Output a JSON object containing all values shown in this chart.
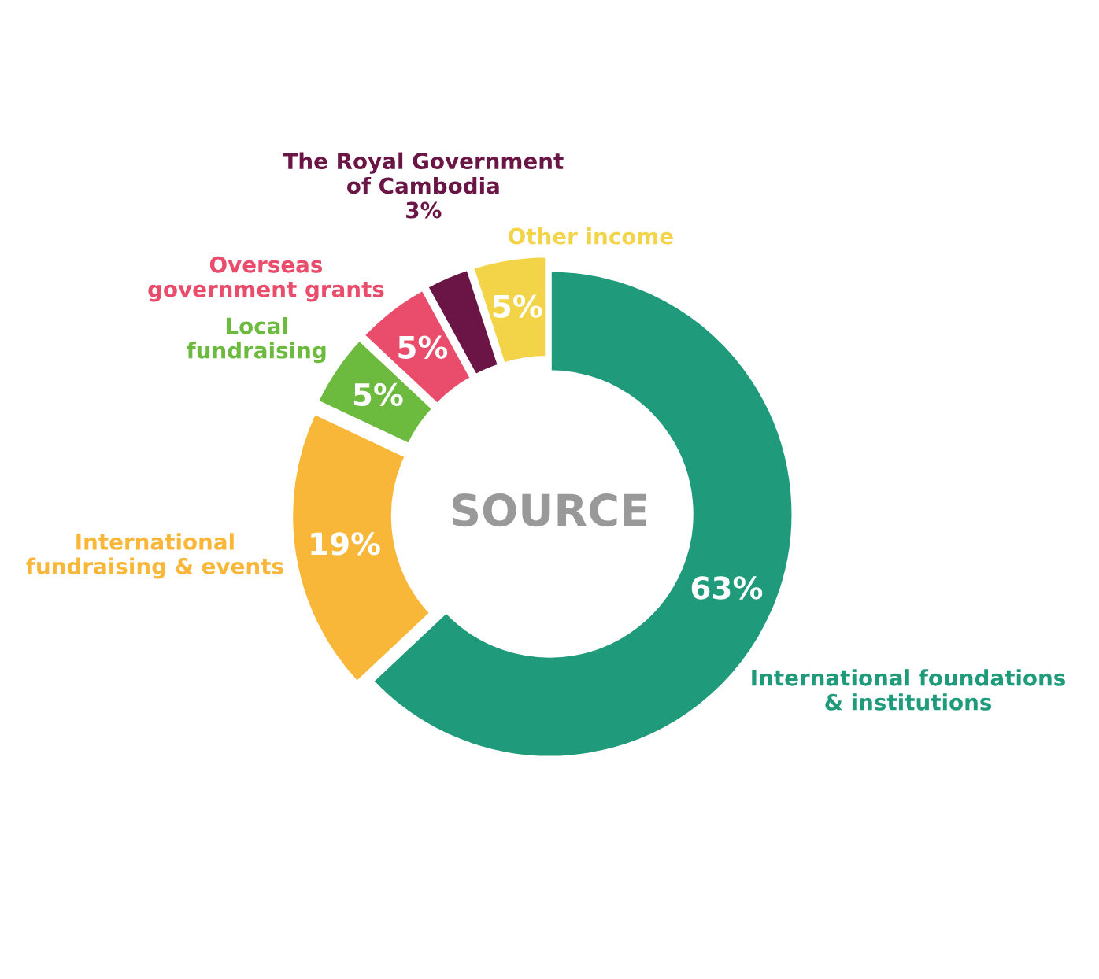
{
  "chart_data": {
    "type": "donut",
    "categories": [
      "International foundations\n& institutions",
      "International\nfundraising & events",
      "Local\nfundraising",
      "Overseas\ngovernment grants",
      "The Royal Government\nof Cambodia",
      "Other income"
    ],
    "values": [
      63,
      19,
      5,
      5,
      3,
      5
    ],
    "value_labels": [
      "63%",
      "19%",
      "5%",
      "5%",
      "3%",
      "5%"
    ],
    "colors": [
      "#1f9a7b",
      "#f9b73a",
      "#6cba3e",
      "#ea4d6b",
      "#6a1545",
      "#f3d449"
    ],
    "annotations": [
      "SOURCE"
    ],
    "legend": false
  }
}
